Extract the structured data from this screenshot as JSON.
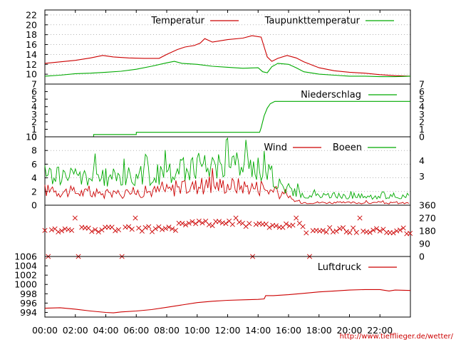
{
  "source_url": "http://www.tiefflieger.de/wetter/",
  "colors": {
    "red": "#cc0000",
    "green": "#00aa00",
    "grid": "#888888",
    "frame": "#000000"
  },
  "time_axis": {
    "min_h": 0,
    "max_h": 24,
    "ticks": [
      0,
      2,
      4,
      6,
      8,
      10,
      12,
      14,
      16,
      18,
      20,
      22
    ],
    "labels": [
      "00:00",
      "02:00",
      "04:00",
      "06:00",
      "08:00",
      "10:00",
      "12:00",
      "14:00",
      "16:00",
      "18:00",
      "20:00",
      "22:00"
    ]
  },
  "chart_data": [
    {
      "type": "line",
      "legend": [
        "Temperatur",
        "Taupunkttemperatur"
      ],
      "ylim": [
        8,
        23
      ],
      "yticks": [
        10,
        12,
        14,
        16,
        18,
        20,
        22
      ],
      "grid": true,
      "series": [
        {
          "name": "Temperatur",
          "color": "red",
          "x": [
            0,
            1,
            2,
            3,
            3.8,
            4.5,
            5.5,
            6.5,
            7.5,
            8,
            8.7,
            9.2,
            9.8,
            10.2,
            10.5,
            11,
            12,
            13,
            13.6,
            14.2,
            14.4,
            14.6,
            14.9,
            15.3,
            15.9,
            16.5,
            17,
            18,
            19,
            20,
            21,
            22,
            23,
            24
          ],
          "y": [
            12.2,
            12.5,
            12.8,
            13.3,
            13.8,
            13.5,
            13.3,
            13.2,
            13.2,
            14,
            15,
            15.5,
            15.8,
            16.3,
            17.2,
            16.5,
            17,
            17.3,
            17.8,
            17.5,
            15.5,
            13.5,
            12.6,
            13.2,
            13.8,
            13.3,
            12.5,
            11.3,
            10.7,
            10.4,
            10.2,
            9.9,
            9.7,
            9.6
          ]
        },
        {
          "name": "Taupunkttemperatur",
          "color": "green",
          "x": [
            0,
            1,
            2,
            3,
            4,
            5,
            6,
            7,
            8,
            8.5,
            9,
            10,
            11,
            12,
            13,
            14,
            14.3,
            14.6,
            14.9,
            15.3,
            16,
            16.5,
            17,
            18,
            19,
            20,
            21,
            22,
            23,
            24
          ],
          "y": [
            9.6,
            9.8,
            10.1,
            10.2,
            10.4,
            10.6,
            11,
            11.6,
            12.3,
            12.6,
            12.2,
            12,
            11.6,
            11.4,
            11.2,
            11.3,
            10.5,
            10.3,
            11.5,
            12.2,
            12,
            11.3,
            10.5,
            10,
            9.8,
            9.6,
            9.6,
            9.5,
            9.5,
            9.6
          ]
        }
      ]
    },
    {
      "type": "line",
      "legend": [
        "Niederschlag"
      ],
      "ylim": [
        0,
        7
      ],
      "yticks": [
        0,
        1,
        2,
        3,
        4,
        5,
        6,
        7
      ],
      "grid": false,
      "series": [
        {
          "name": "Niederschlag",
          "color": "green",
          "x": [
            0,
            3.2,
            3.2,
            6.0,
            6.0,
            14.1,
            14.2,
            14.4,
            14.6,
            14.8,
            15.1,
            24
          ],
          "y": [
            0,
            0,
            0.3,
            0.3,
            0.6,
            0.6,
            1.2,
            2.8,
            3.8,
            4.4,
            4.7,
            4.7
          ]
        }
      ]
    },
    {
      "type": "line",
      "legend": [
        "Wind",
        "Boeen"
      ],
      "ylim": [
        0,
        10
      ],
      "yticks": [
        0,
        2,
        4,
        6,
        8,
        10
      ],
      "yticks_right": [
        "3",
        "4"
      ],
      "grid": true,
      "series": [
        {
          "name": "Wind",
          "color": "red",
          "levels": [
            [
              0,
              2.2
            ],
            [
              4,
              1.6
            ],
            [
              8,
              2.2
            ],
            [
              10,
              2.8
            ],
            [
              12,
              3.0
            ],
            [
              14,
              2.6
            ],
            [
              14.8,
              2.2
            ],
            [
              15.5,
              1.5
            ],
            [
              16.5,
              0.6
            ],
            [
              17,
              0.4
            ],
            [
              24,
              0.3
            ]
          ]
        },
        {
          "name": "Boeen",
          "color": "green",
          "levels": [
            [
              0,
              4.5
            ],
            [
              4,
              4.0
            ],
            [
              8,
              4.5
            ],
            [
              10,
              5.8
            ],
            [
              12,
              6.0
            ],
            [
              14,
              5.5
            ],
            [
              14.8,
              4.5
            ],
            [
              15.5,
              3.0
            ],
            [
              16.5,
              1.8
            ],
            [
              17,
              1.4
            ],
            [
              24,
              1.3
            ]
          ]
        }
      ]
    },
    {
      "type": "scatter",
      "legend": [],
      "ylim": [
        0,
        360
      ],
      "yticks_right": [
        0,
        90,
        180,
        270,
        360
      ],
      "grid": false,
      "series": [
        {
          "name": "",
          "color": "red",
          "marker": "x",
          "levels": [
            [
              0,
              190
            ],
            [
              8.5,
              195
            ],
            [
              9,
              230
            ],
            [
              14.5,
              230
            ],
            [
              15,
              215
            ],
            [
              16.8,
              220
            ],
            [
              17,
              185
            ],
            [
              24,
              180
            ]
          ]
        }
      ]
    },
    {
      "type": "line",
      "legend": [
        "Luftdruck"
      ],
      "ylim": [
        993,
        1006
      ],
      "yticks": [
        994,
        996,
        998,
        1000,
        1002,
        1004,
        1006
      ],
      "grid": false,
      "series": [
        {
          "name": "Luftdruck",
          "color": "red",
          "x": [
            0,
            1,
            2,
            3,
            4,
            4.5,
            5,
            6,
            7,
            8,
            9,
            10,
            11,
            12,
            13,
            14,
            14.4,
            14.5,
            15,
            16,
            17,
            18,
            19,
            20,
            21,
            22,
            22.6,
            23,
            24
          ],
          "y": [
            994.9,
            995.0,
            994.7,
            994.3,
            994.0,
            993.9,
            994.1,
            994.3,
            994.6,
            995.1,
            995.6,
            996.1,
            996.4,
            996.6,
            996.7,
            996.8,
            996.9,
            997.6,
            997.6,
            997.8,
            998.1,
            998.4,
            998.6,
            998.8,
            998.9,
            998.9,
            998.6,
            998.8,
            998.7
          ]
        }
      ]
    }
  ]
}
